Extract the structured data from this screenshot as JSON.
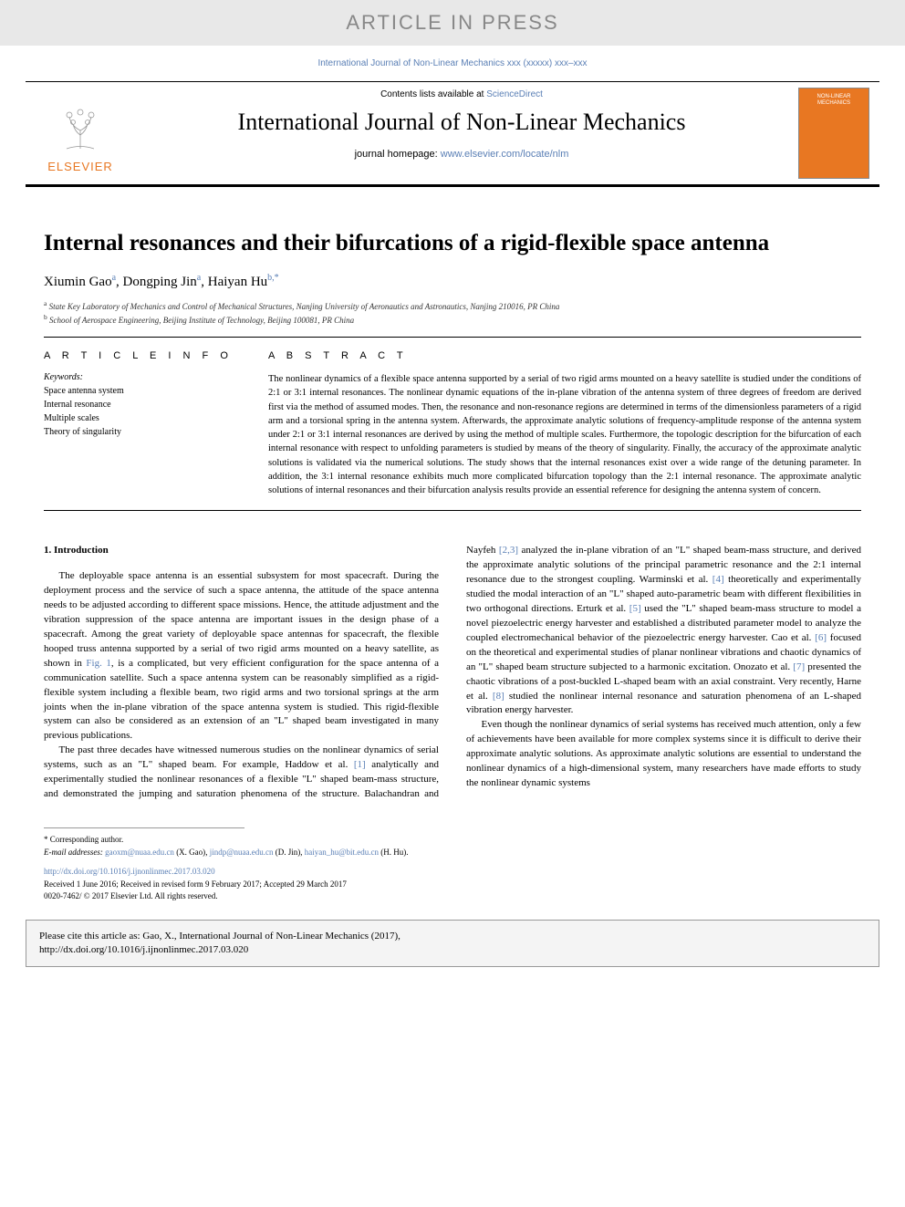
{
  "banner": "ARTICLE IN PRESS",
  "journal_ref": {
    "prefix": "International Journal of Non-Linear Mechanics xxx (xxxxx) xxx–xxx",
    "color": "#5a7fb5"
  },
  "masthead": {
    "contents_prefix": "Contents lists available at ",
    "contents_link": "ScienceDirect",
    "journal_title": "International Journal of Non-Linear Mechanics",
    "homepage_prefix": "journal homepage: ",
    "homepage_link": "www.elsevier.com/locate/nlm",
    "publisher_name": "ELSEVIER",
    "cover_line1": "NON-LINEAR",
    "cover_line2": "MECHANICS"
  },
  "article": {
    "title": "Internal resonances and their bifurcations of a rigid-flexible space antenna",
    "authors": [
      {
        "name": "Xiumin Gao",
        "aff": "a"
      },
      {
        "name": "Dongping Jin",
        "aff": "a"
      },
      {
        "name": "Haiyan Hu",
        "aff": "b,*",
        "corresponding": true
      }
    ],
    "affiliations": [
      {
        "marker": "a",
        "text": "State Key Laboratory of Mechanics and Control of Mechanical Structures, Nanjing University of Aeronautics and Astronautics, Nanjing 210016, PR China"
      },
      {
        "marker": "b",
        "text": "School of Aerospace Engineering, Beijing Institute of Technology, Beijing 100081, PR China"
      }
    ]
  },
  "info": {
    "heading": "A R T I C L E  I N F O",
    "keywords_label": "Keywords:",
    "keywords": [
      "Space antenna system",
      "Internal resonance",
      "Multiple scales",
      "Theory of singularity"
    ]
  },
  "abstract": {
    "heading": "A B S T R A C T",
    "text": "The nonlinear dynamics of a flexible space antenna supported by a serial of two rigid arms mounted on a heavy satellite is studied under the conditions of 2:1 or 3:1 internal resonances. The nonlinear dynamic equations of the in-plane vibration of the antenna system of three degrees of freedom are derived first via the method of assumed modes. Then, the resonance and non-resonance regions are determined in terms of the dimensionless parameters of a rigid arm and a torsional spring in the antenna system. Afterwards, the approximate analytic solutions of frequency-amplitude response of the antenna system under 2:1 or 3:1 internal resonances are derived by using the method of multiple scales. Furthermore, the topologic description for the bifurcation of each internal resonance with respect to unfolding parameters is studied by means of the theory of singularity. Finally, the accuracy of the approximate analytic solutions is validated via the numerical solutions. The study shows that the internal resonances exist over a wide range of the detuning parameter. In addition, the 3:1 internal resonance exhibits much more complicated bifurcation topology than the 2:1 internal resonance. The approximate analytic solutions of internal resonances and their bifurcation analysis results provide an essential reference for designing the antenna system of concern."
  },
  "body": {
    "section_heading": "1. Introduction",
    "paragraphs": [
      "The deployable space antenna is an essential subsystem for most spacecraft. During the deployment process and the service of such a space antenna, the attitude of the space antenna needs to be adjusted according to different space missions. Hence, the attitude adjustment and the vibration suppression of the space antenna are important issues in the design phase of a spacecraft. Among the great variety of deployable space antennas for spacecraft, the flexible hooped truss antenna supported by a serial of two rigid arms mounted on a heavy satellite, as shown in Fig. 1, is a complicated, but very efficient configuration for the space antenna of a communication satellite. Such a space antenna system can be reasonably simplified as a rigid-flexible system including a flexible beam, two rigid arms and two torsional springs at the arm joints when the in-plane vibration of the space antenna system is studied. This rigid-flexible system can also be considered as an extension of an \"L\" shaped beam investigated in many previous publications.",
      "The past three decades have witnessed numerous studies on the nonlinear dynamics of serial systems, such as an \"L\" shaped beam. For example, Haddow et al. [1] analytically and experimentally studied the nonlinear resonances of a flexible \"L\" shaped beam-mass structure, and demonstrated the jumping and saturation phenomena of the structure. Balachandran and Nayfeh [2,3] analyzed the in-plane vibration of an \"L\" shaped beam-mass structure, and derived the approximate analytic solutions of the principal parametric resonance and the 2:1 internal resonance due to the strongest coupling. Warminski et al. [4] theoretically and experimentally studied the modal interaction of an \"L\" shaped auto-parametric beam with different flexibilities in two orthogonal directions. Erturk et al. [5] used the \"L\" shaped beam-mass structure to model a novel piezoelectric energy harvester and established a distributed parameter model to analyze the coupled electromechanical behavior of the piezoelectric energy harvester. Cao et al. [6] focused on the theoretical and experimental studies of planar nonlinear vibrations and chaotic dynamics of an \"L\" shaped beam structure subjected to a harmonic excitation. Onozato et al. [7] presented the chaotic vibrations of a post-buckled L-shaped beam with an axial constraint. Very recently, Harne et al. [8] studied the nonlinear internal resonance and saturation phenomena of an L-shaped vibration energy harvester.",
      "Even though the nonlinear dynamics of serial systems has received much attention, only a few of achievements have been available for more complex systems since it is difficult to derive their approximate analytic solutions. As approximate analytic solutions are essential to understand the nonlinear dynamics of a high-dimensional system, many researchers have made efforts to study the nonlinear dynamic systems"
    ],
    "ref_numbers": [
      "[1]",
      "[2,3]",
      "[4]",
      "[5]",
      "[6]",
      "[7]",
      "[8]"
    ],
    "fig_ref": "Fig. 1"
  },
  "footer": {
    "corresponding": "* Corresponding author.",
    "email_label": "E-mail addresses: ",
    "emails": [
      {
        "addr": "gaoxm@nuaa.edu.cn",
        "name": "(X. Gao)"
      },
      {
        "addr": "jindp@nuaa.edu.cn",
        "name": "(D. Jin)"
      },
      {
        "addr": "haiyan_hu@bit.edu.cn",
        "name": "(H. Hu)"
      }
    ],
    "doi": "http://dx.doi.org/10.1016/j.ijnonlinmec.2017.03.020",
    "received": "Received 1 June 2016; Received in revised form 9 February 2017; Accepted 29 March 2017",
    "issn": "0020-7462/ © 2017 Elsevier Ltd. All rights reserved."
  },
  "citebox": {
    "line1": "Please cite this article as: Gao, X., International Journal of Non-Linear Mechanics (2017),",
    "line2": "http://dx.doi.org/10.1016/j.ijnonlinmec.2017.03.020"
  },
  "colors": {
    "link": "#5a7fb5",
    "elsevier_orange": "#e87722",
    "banner_bg": "#e8e8e8",
    "banner_text": "#888888"
  }
}
